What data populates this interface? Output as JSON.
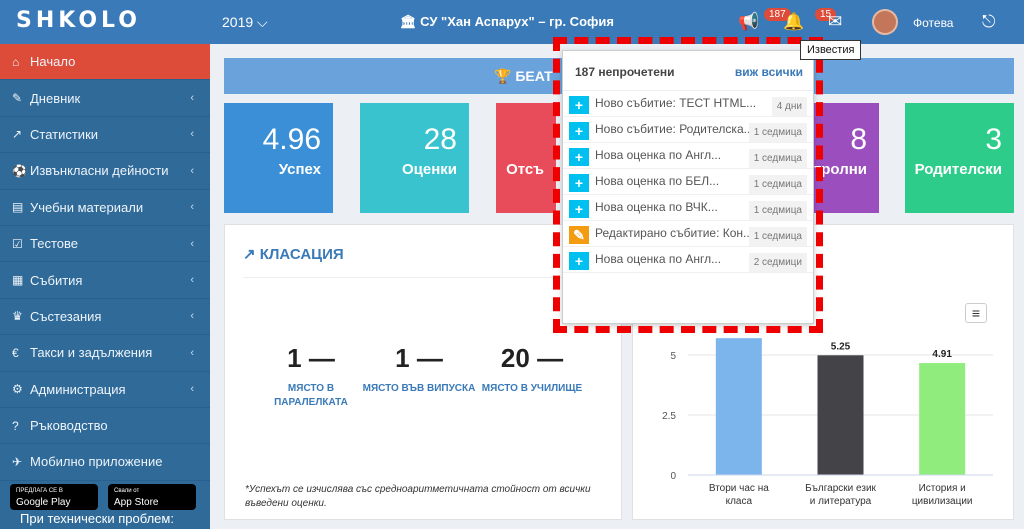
{
  "header": {
    "logo": "SHKOLO",
    "year": "2019 ⌵",
    "school": "СУ \"Хан Аспарух\" – гр. София",
    "badge_notif": "187",
    "badge_msg": "15",
    "user": "Фотева",
    "tooltip": "Известия"
  },
  "sidebar": {
    "items": [
      {
        "icon": "⌂",
        "label": "Начало",
        "chev": ""
      },
      {
        "icon": "✎",
        "label": "Дневник",
        "chev": "‹"
      },
      {
        "icon": "↗",
        "label": "Статистики",
        "chev": "‹"
      },
      {
        "icon": "⚽",
        "label": "Извънкласни дейности",
        "chev": "‹"
      },
      {
        "icon": "▤",
        "label": "Учебни материали",
        "chev": "‹"
      },
      {
        "icon": "☑",
        "label": "Тестове",
        "chev": "‹"
      },
      {
        "icon": "▦",
        "label": "Събития",
        "chev": "‹"
      },
      {
        "icon": "♛",
        "label": "Състезания",
        "chev": "‹"
      },
      {
        "icon": "€",
        "label": "Такси и задължения",
        "chev": "‹"
      },
      {
        "icon": "⚙",
        "label": "Администрация",
        "chev": "‹"
      },
      {
        "icon": "?",
        "label": "Ръководство",
        "chev": ""
      },
      {
        "icon": "✈",
        "label": "Мобилно приложение",
        "chev": ""
      }
    ],
    "gp_small": "ПРЕДЛАГА СЕ В",
    "gp": "Google Play",
    "as_small": "Свали от",
    "as": "App Store",
    "problem": "При технически проблем:"
  },
  "banner": "БЕАТ",
  "tiles": [
    {
      "num": "4.96",
      "label": "Успех",
      "color": "#3a8fd6"
    },
    {
      "num": "28",
      "label": "Оценки",
      "color": "#39c3cf"
    },
    {
      "num": "",
      "label": "Отсъ",
      "color": "#e84c5a"
    },
    {
      "num": "8",
      "label": "тролни",
      "color": "#9b4fbf"
    },
    {
      "num": "3",
      "label": "Родителски",
      "color": "#2ecc8a"
    }
  ],
  "ranking": {
    "title": "КЛАСАЦИЯ",
    "items": [
      {
        "num": "1",
        "label": "МЯСТО В ПАРАЛЕЛКАТА"
      },
      {
        "num": "1",
        "label": "МЯСТО ВЪВ ВИПУСКА"
      },
      {
        "num": "20",
        "label": "МЯСТО В УЧИЛИЩЕ"
      }
    ],
    "note": "*Успехът се изчислява със средноаритметичната стойност от всички въведени оценки."
  },
  "chart_data": {
    "type": "bar",
    "categories": [
      "Втори час на класа",
      "Български език и литература",
      "История и цивилизации"
    ],
    "values": [
      6,
      5.25,
      4.91
    ],
    "value_labels": [
      "",
      "5.25",
      "4.91"
    ],
    "ylim": [
      0,
      6
    ],
    "yticks": [
      "0",
      "2.5",
      "5"
    ],
    "colors": [
      "#7cb5ec",
      "#434348",
      "#90ed7d"
    ]
  },
  "notifications": {
    "header": "187 непрочетени",
    "view_all": "виж всички",
    "items": [
      {
        "icon": "+",
        "type": "new",
        "text": "Ново събитие: ТЕСТ HTML...",
        "time": "4 дни"
      },
      {
        "icon": "+",
        "type": "new",
        "text": "Ново събитие: Родителска...",
        "time": "1 седмица"
      },
      {
        "icon": "+",
        "type": "new",
        "text": "Нова оценка по Англ...",
        "time": "1 седмица"
      },
      {
        "icon": "+",
        "type": "new",
        "text": "Нова оценка по БЕЛ...",
        "time": "1 седмица"
      },
      {
        "icon": "+",
        "type": "new",
        "text": "Нова оценка по ВЧК...",
        "time": "1 седмица"
      },
      {
        "icon": "✎",
        "type": "edit",
        "text": "Редактирано събитие: Кон...",
        "time": "1 седмица"
      },
      {
        "icon": "+",
        "type": "new",
        "text": "Нова оценка по Англ...",
        "time": "2 седмици"
      }
    ]
  }
}
